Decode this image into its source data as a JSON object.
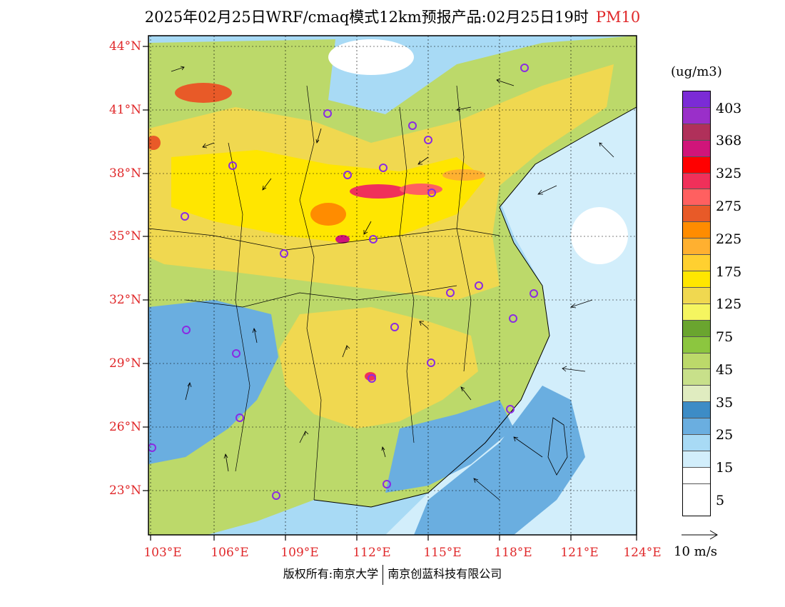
{
  "header": {
    "title": "2025年02月25日WRF/cmaq模式12km预报产品:02月25日19时",
    "pollutant": "PM10"
  },
  "axes": {
    "lat_labels": [
      "44°N",
      "41°N",
      "38°N",
      "35°N",
      "32°N",
      "29°N",
      "26°N",
      "23°N"
    ],
    "lon_labels": [
      "103°E",
      "106°E",
      "109°E",
      "112°E",
      "115°E",
      "118°E",
      "121°E",
      "124°E"
    ]
  },
  "legend": {
    "unit": "(ug/m3)",
    "labels": [
      "403",
      "368",
      "325",
      "275",
      "225",
      "175",
      "125",
      "75",
      "45",
      "35",
      "25",
      "15",
      "5"
    ],
    "colors": [
      "#7b2bd6",
      "#9a2fc9",
      "#b0305a",
      "#d0157a",
      "#ff0000",
      "#f0305a",
      "#ff6060",
      "#e85a28",
      "#ff8c00",
      "#ffb030",
      "#ffd030",
      "#ffe600",
      "#f0d850",
      "#f5f560",
      "#6aa52f",
      "#8cc63f",
      "#bcd96a",
      "#c8e08a",
      "#e0ecc0",
      "#3d8cc6",
      "#6aaee0",
      "#a8daf5",
      "#d2eefb",
      "#ffffff"
    ],
    "wind_scale_label": "10 m/s"
  },
  "footer": {
    "copyright": "版权所有:南京大学",
    "company": "南京创蓝科技有限公司"
  }
}
